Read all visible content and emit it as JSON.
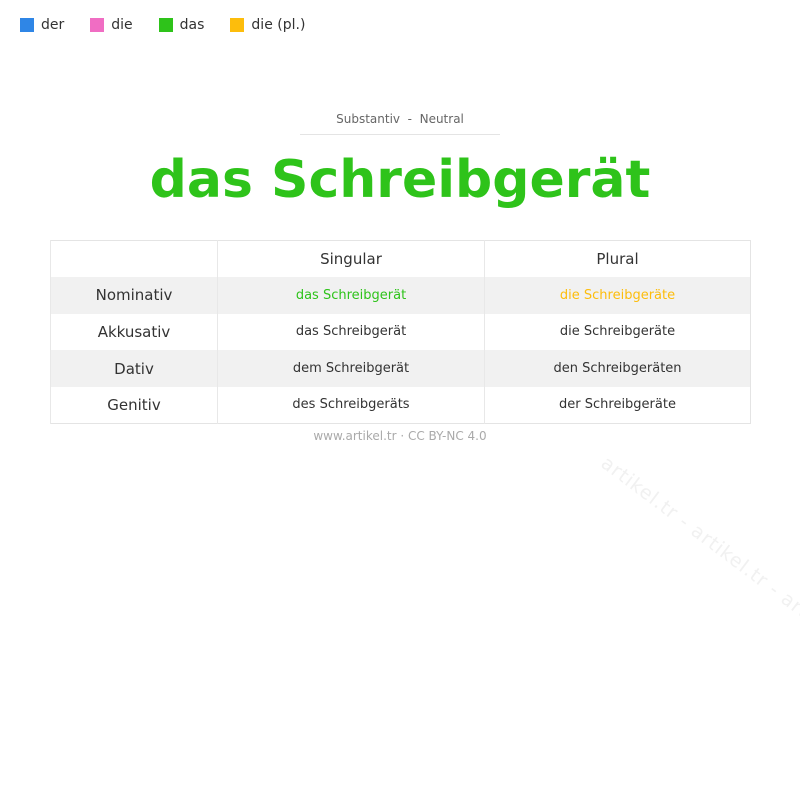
{
  "watermark": "artikel.tr - artikel.tr - artikel.tr - artikel.tr - artikel.tr",
  "legend": [
    {
      "label": "der",
      "color": "#2f86e6"
    },
    {
      "label": "die",
      "color": "#f06dc3"
    },
    {
      "label": "das",
      "color": "#2ec31a"
    },
    {
      "label": "die (pl.)",
      "color": "#fdbd0c"
    }
  ],
  "subtitle": "Substantiv  -  Neutral",
  "title": "das Schreibgerät",
  "table": {
    "headers": [
      "",
      "Singular",
      "Plural"
    ],
    "rows": [
      {
        "case": "Nominativ",
        "singular": "das Schreibgerät",
        "plural": "die Schreibgeräte"
      },
      {
        "case": "Akkusativ",
        "singular": "das Schreibgerät",
        "plural": "die Schreibgeräte"
      },
      {
        "case": "Dativ",
        "singular": "dem Schreibgerät",
        "plural": "den Schreibgeräten"
      },
      {
        "case": "Genitiv",
        "singular": "des Schreibgeräts",
        "plural": "der Schreibgeräte"
      }
    ]
  },
  "footer": "www.artikel.tr · CC BY-NC 4.0"
}
